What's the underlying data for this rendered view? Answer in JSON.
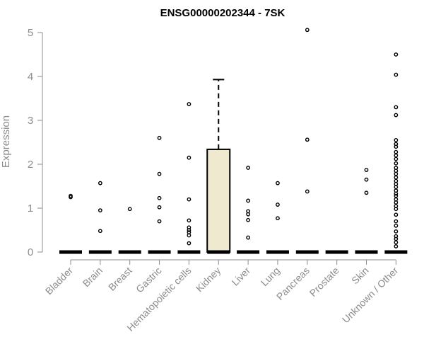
{
  "chart_data": {
    "type": "box",
    "title": "ENSG00000202344 - 7SK",
    "ylabel": "Expression",
    "ylim": [
      0,
      5.1
    ],
    "yticks": [
      0,
      1,
      2,
      3,
      4,
      5
    ],
    "categories": [
      "Bladder",
      "Brain",
      "Breast",
      "Gastric",
      "Hematopoietic cells",
      "Kidney",
      "Liver",
      "Lung",
      "Pancreas",
      "Prostate",
      "Skin",
      "Unknown / Other"
    ],
    "colors": {
      "box_fill": "#efe9d0",
      "median": "#000000",
      "axis": "#8c8c8c"
    },
    "boxes": [
      {
        "category": "Bladder",
        "q1": 0,
        "median": 0,
        "q3": 0,
        "whisker_low": 0,
        "whisker_high": 0,
        "outliers": [
          1.25,
          1.28
        ]
      },
      {
        "category": "Brain",
        "q1": 0,
        "median": 0,
        "q3": 0,
        "whisker_low": 0,
        "whisker_high": 0,
        "outliers": [
          0.48,
          0.95,
          1.57
        ]
      },
      {
        "category": "Breast",
        "q1": 0,
        "median": 0,
        "q3": 0,
        "whisker_low": 0,
        "whisker_high": 0,
        "outliers": [
          0.98
        ]
      },
      {
        "category": "Gastric",
        "q1": 0,
        "median": 0,
        "q3": 0,
        "whisker_low": 0,
        "whisker_high": 0,
        "outliers": [
          0.7,
          1.02,
          1.23,
          1.78,
          2.6
        ]
      },
      {
        "category": "Hematopoietic cells",
        "q1": 0,
        "median": 0,
        "q3": 0,
        "whisker_low": 0,
        "whisker_high": 0,
        "outliers": [
          0.2,
          0.38,
          0.45,
          0.5,
          0.56,
          0.72,
          1.2,
          2.15,
          3.37
        ]
      },
      {
        "category": "Kidney",
        "q1": 0,
        "median": 0,
        "q3": 2.34,
        "whisker_low": 0,
        "whisker_high": 3.93,
        "outliers": []
      },
      {
        "category": "Liver",
        "q1": 0,
        "median": 0,
        "q3": 0,
        "whisker_low": 0,
        "whisker_high": 0,
        "outliers": [
          0.33,
          0.73,
          0.86,
          0.93,
          1.17,
          1.92
        ]
      },
      {
        "category": "Lung",
        "q1": 0,
        "median": 0,
        "q3": 0,
        "whisker_low": 0,
        "whisker_high": 0,
        "outliers": [
          0.77,
          1.08,
          1.57
        ]
      },
      {
        "category": "Pancreas",
        "q1": 0,
        "median": 0,
        "q3": 0,
        "whisker_low": 0,
        "whisker_high": 0,
        "outliers": [
          1.38,
          2.56,
          5.06
        ]
      },
      {
        "category": "Prostate",
        "q1": 0,
        "median": 0,
        "q3": 0,
        "whisker_low": 0,
        "whisker_high": 0,
        "outliers": []
      },
      {
        "category": "Skin",
        "q1": 0,
        "median": 0,
        "q3": 0,
        "whisker_low": 0,
        "whisker_high": 0,
        "outliers": [
          1.35,
          1.65,
          1.87
        ]
      },
      {
        "category": "Unknown / Other",
        "q1": 0,
        "median": 0,
        "q3": 0,
        "whisker_low": 0,
        "whisker_high": 0,
        "outliers": [
          0.13,
          0.22,
          0.3,
          0.36,
          0.47,
          0.6,
          0.7,
          0.85,
          0.98,
          1.05,
          1.13,
          1.2,
          1.28,
          1.33,
          1.4,
          1.48,
          1.55,
          1.62,
          1.7,
          1.78,
          1.85,
          1.92,
          2.02,
          2.12,
          2.2,
          2.28,
          2.4,
          2.46,
          2.55,
          3.12,
          3.3,
          4.04,
          4.5
        ]
      }
    ]
  }
}
